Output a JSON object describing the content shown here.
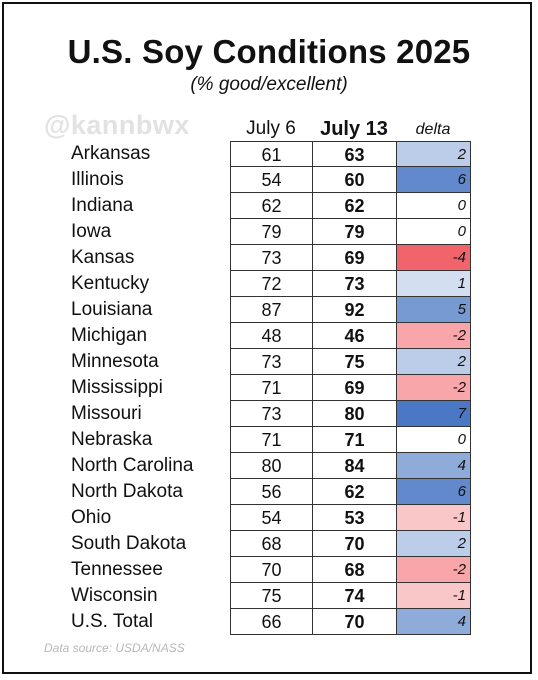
{
  "header": {
    "title": "U.S. Soy Conditions 2025",
    "subtitle": "(% good/excellent)",
    "watermark": "@kannbwx"
  },
  "footer": {
    "source": "Data source: USDA/NASS"
  },
  "chart_data": {
    "type": "table",
    "title": "U.S. Soy Conditions 2025",
    "subtitle": "(% good/excellent)",
    "columns": [
      "July 6",
      "July 13",
      "delta"
    ],
    "delta_colors": {
      "positive": "#4a78c4",
      "negative": "#f2646b",
      "zero": "#ffffff"
    },
    "rows": [
      {
        "state": "Arkansas",
        "july6": "61",
        "july13": "63",
        "delta": "2"
      },
      {
        "state": "Illinois",
        "july6": "54",
        "july13": "60",
        "delta": "6"
      },
      {
        "state": "Indiana",
        "july6": "62",
        "july13": "62",
        "delta": "0"
      },
      {
        "state": "Iowa",
        "july6": "79",
        "july13": "79",
        "delta": "0"
      },
      {
        "state": "Kansas",
        "july6": "73",
        "july13": "69",
        "delta": "-4"
      },
      {
        "state": "Kentucky",
        "july6": "72",
        "july13": "73",
        "delta": "1"
      },
      {
        "state": "Louisiana",
        "july6": "87",
        "july13": "92",
        "delta": "5"
      },
      {
        "state": "Michigan",
        "july6": "48",
        "july13": "46",
        "delta": "-2"
      },
      {
        "state": "Minnesota",
        "july6": "73",
        "july13": "75",
        "delta": "2"
      },
      {
        "state": "Mississippi",
        "july6": "71",
        "july13": "69",
        "delta": "-2"
      },
      {
        "state": "Missouri",
        "july6": "73",
        "july13": "80",
        "delta": "7"
      },
      {
        "state": "Nebraska",
        "july6": "71",
        "july13": "71",
        "delta": "0"
      },
      {
        "state": "North Carolina",
        "july6": "80",
        "july13": "84",
        "delta": "4"
      },
      {
        "state": "North Dakota",
        "july6": "56",
        "july13": "62",
        "delta": "6"
      },
      {
        "state": "Ohio",
        "july6": "54",
        "july13": "53",
        "delta": "-1"
      },
      {
        "state": "South Dakota",
        "july6": "68",
        "july13": "70",
        "delta": "2"
      },
      {
        "state": "Tennessee",
        "july6": "70",
        "july13": "68",
        "delta": "-2"
      },
      {
        "state": "Wisconsin",
        "july6": "75",
        "july13": "74",
        "delta": "-1"
      },
      {
        "state": "U.S. Total",
        "july6": "66",
        "july13": "70",
        "delta": "4"
      }
    ]
  }
}
